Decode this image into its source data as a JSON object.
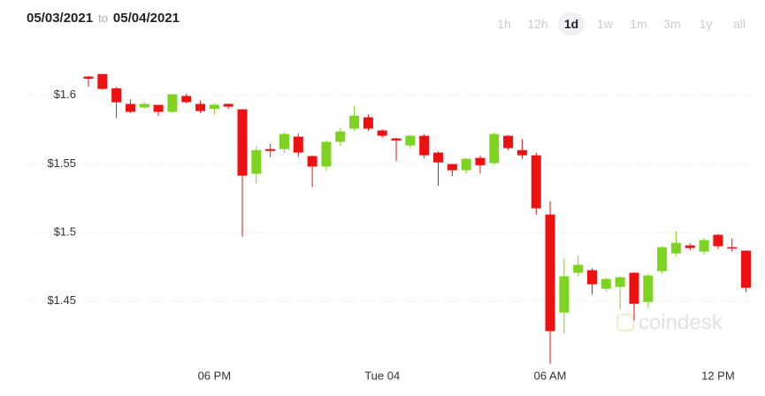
{
  "header": {
    "from": "05/03/2021",
    "to_word": "to",
    "to": "05/04/2021"
  },
  "range_buttons": [
    {
      "label": "1h",
      "selected": false
    },
    {
      "label": "12h",
      "selected": false
    },
    {
      "label": "1d",
      "selected": true
    },
    {
      "label": "1w",
      "selected": false
    },
    {
      "label": "1m",
      "selected": false
    },
    {
      "label": "3m",
      "selected": false
    },
    {
      "label": "1y",
      "selected": false
    },
    {
      "label": "all",
      "selected": false
    }
  ],
  "watermark": "coindesk",
  "chart_data": {
    "type": "candlestick",
    "categories": [
      null,
      null,
      null,
      null,
      null,
      null,
      null,
      null,
      null,
      "06 PM",
      null,
      null,
      null,
      null,
      null,
      null,
      null,
      null,
      null,
      null,
      null,
      "Tue 04",
      null,
      null,
      null,
      null,
      null,
      null,
      null,
      null,
      null,
      null,
      null,
      "06 AM",
      null,
      null,
      null,
      null,
      null,
      null,
      null,
      null,
      null,
      null,
      null,
      "12 PM",
      null,
      null
    ],
    "open": [
      1.6135,
      1.6154,
      1.605,
      1.5936,
      1.591,
      1.5929,
      1.5878,
      1.5994,
      1.5936,
      1.59,
      1.5936,
      1.5897,
      1.5427,
      1.5607,
      1.5607,
      1.5698,
      1.5556,
      1.548,
      1.566,
      1.5756,
      1.5839,
      1.5743,
      1.5685,
      1.5633,
      1.5704,
      1.5582,
      1.5498,
      1.5453,
      1.5543,
      1.5505,
      1.5704,
      1.56,
      1.5562,
      1.5131,
      1.4417,
      1.4707,
      1.4726,
      1.4591,
      1.4604,
      1.4707,
      1.4494,
      1.4719,
      1.4848,
      1.4906,
      1.4861,
      1.4983,
      1.4893,
      1.4868
    ],
    "high": [
      1.614,
      1.6154,
      1.606,
      1.5968,
      1.595,
      1.593,
      1.601,
      1.601,
      1.596,
      1.594,
      1.594,
      1.5897,
      1.563,
      1.5646,
      1.573,
      1.572,
      1.556,
      1.567,
      1.576,
      1.592,
      1.586,
      1.575,
      1.569,
      1.571,
      1.5717,
      1.559,
      1.55,
      1.554,
      1.556,
      1.573,
      1.571,
      1.568,
      1.558,
      1.5228,
      1.481,
      1.4829,
      1.474,
      1.467,
      1.468,
      1.471,
      1.47,
      1.49,
      1.501,
      1.492,
      1.496,
      1.499,
      1.4957,
      1.487
    ],
    "low": [
      1.606,
      1.604,
      1.5834,
      1.587,
      1.59,
      1.585,
      1.587,
      1.594,
      1.587,
      1.586,
      1.59,
      1.497,
      1.536,
      1.555,
      1.558,
      1.555,
      1.533,
      1.545,
      1.563,
      1.574,
      1.574,
      1.569,
      1.552,
      1.561,
      1.554,
      1.534,
      1.541,
      1.543,
      1.543,
      1.549,
      1.56,
      1.5537,
      1.513,
      1.4044,
      1.4263,
      1.468,
      1.455,
      1.457,
      1.4443,
      1.436,
      1.445,
      1.47,
      1.483,
      1.487,
      1.484,
      1.488,
      1.486,
      1.4565
    ],
    "close": [
      1.612,
      1.6045,
      1.5948,
      1.5878,
      1.5936,
      1.5878,
      1.6006,
      1.5949,
      1.5884,
      1.593,
      1.5916,
      1.5414,
      1.56,
      1.5594,
      1.5717,
      1.5582,
      1.548,
      1.566,
      1.5736,
      1.585,
      1.5756,
      1.5704,
      1.567,
      1.5704,
      1.5562,
      1.551,
      1.5453,
      1.5537,
      1.549,
      1.5717,
      1.5614,
      1.5562,
      1.5176,
      1.4282,
      1.4681,
      1.4765,
      1.4623,
      1.4662,
      1.4674,
      1.4481,
      1.4687,
      1.4893,
      1.4925,
      1.4887,
      1.4945,
      1.49,
      1.4887,
      1.4597
    ],
    "up_color": "#7ed321",
    "down_color": "#ee1111",
    "ylim": [
      1.39,
      1.63
    ],
    "yticks": [
      {
        "value": 1.45,
        "label": "$1.45"
      },
      {
        "value": 1.5,
        "label": "$1.5"
      },
      {
        "value": 1.55,
        "label": "$1.55"
      },
      {
        "value": 1.6,
        "label": "$1.6"
      }
    ],
    "grid": true
  }
}
